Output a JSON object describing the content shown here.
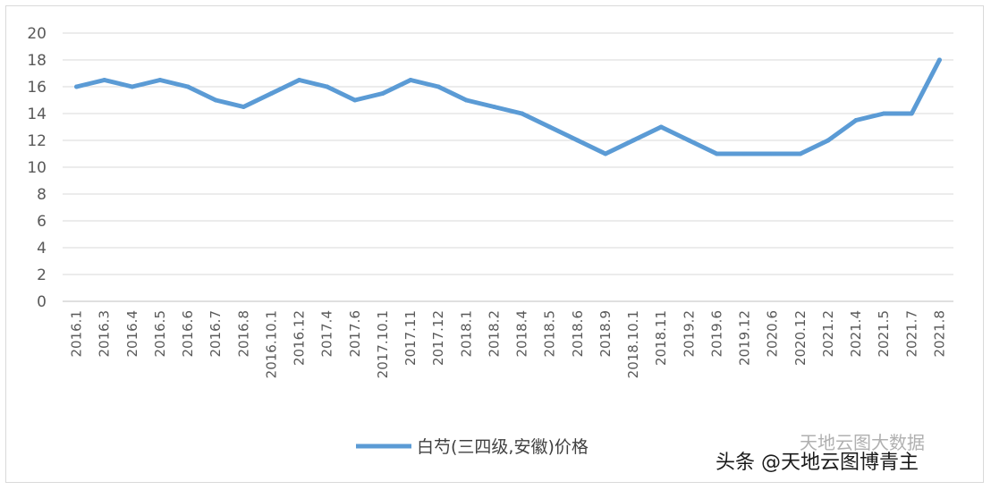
{
  "chart_data": {
    "type": "line",
    "title": "",
    "xlabel": "",
    "ylabel": "",
    "ylim": [
      0,
      20
    ],
    "yticks": [
      0,
      2,
      4,
      6,
      8,
      10,
      12,
      14,
      16,
      18,
      20
    ],
    "grid": true,
    "legend_position": "bottom",
    "categories": [
      "2016.1",
      "2016.3",
      "2016.4",
      "2016.5",
      "2016.6",
      "2016.7",
      "2016.8",
      "2016.10.1",
      "2016.12",
      "2017.4",
      "2017.6",
      "2017.10.1",
      "2017.11",
      "2017.12",
      "2018.1",
      "2018.2",
      "2018.4",
      "2018.5",
      "2018.6",
      "2018.9",
      "2018.10.1",
      "2018.11",
      "2019.2",
      "2019.6",
      "2019.12",
      "2020.6",
      "2020.12",
      "2021.2",
      "2021.4",
      "2021.5",
      "2021.7",
      "2021.8"
    ],
    "series": [
      {
        "name": "白芍(三四级,安徽)价格",
        "color": "#5b9bd5",
        "values": [
          16,
          16.5,
          16,
          16.5,
          16,
          15,
          14.5,
          15.5,
          16.5,
          16,
          15,
          15.5,
          16.5,
          16,
          15,
          14.5,
          14,
          13,
          12,
          11,
          12,
          13,
          12,
          11,
          11,
          11,
          11,
          12,
          13.5,
          14,
          14,
          18
        ]
      }
    ]
  },
  "watermark": {
    "sub": "天地云图大数据",
    "main": "头条 @天地云图博青主"
  }
}
